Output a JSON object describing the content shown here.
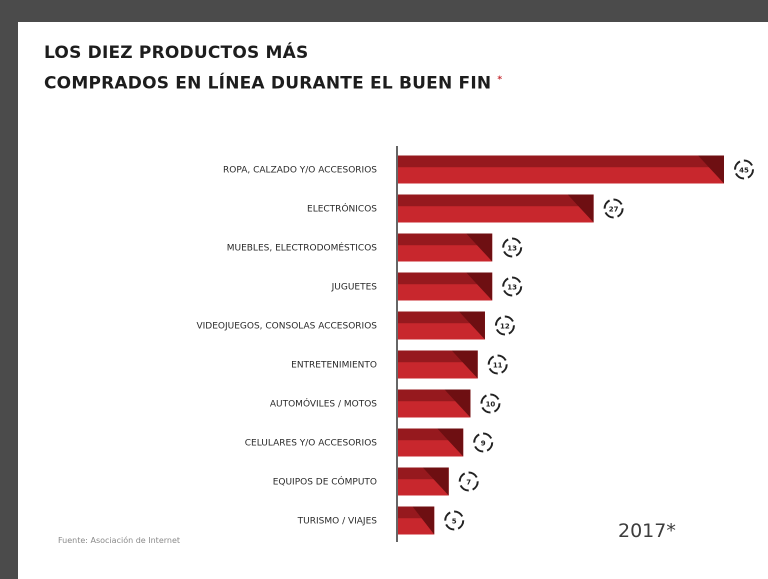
{
  "title_line1": "LOS DIEZ PRODUCTOS MÁS",
  "title_line2": "COMPRADOS EN LÍNEA DURANTE EL BUEN FIN",
  "title_mark": "*",
  "source": "Fuente: Asociación de Internet",
  "year": "2017*",
  "colors": {
    "bar": "#c8272d",
    "bar_dark": "#6e0f12",
    "axis": "#333333",
    "frame": "#4b4b4b"
  },
  "chart_data": {
    "type": "bar",
    "orientation": "horizontal",
    "title": "LOS DIEZ PRODUCTOS MÁS COMPRADOS EN LÍNEA DURANTE EL BUEN FIN*",
    "categories": [
      "ROPA, CALZADO Y/O ACCESORIOS",
      "ELECTRÓNICOS",
      "MUEBLES, ELECTRODOMÉSTICOS",
      "JUGUETES",
      "VIDEOJUEGOS, CONSOLAS ACCESORIOS",
      "ENTRETENIMIENTO",
      "AUTOMÓVILES / MOTOS",
      "CELULARES Y/O ACCESORIOS",
      "EQUIPOS DE CÓMPUTO",
      "TURISMO / VIAJES"
    ],
    "values": [
      45,
      27,
      13,
      13,
      12,
      11,
      10,
      9,
      7,
      5
    ],
    "value_labels": [
      "45",
      "27",
      "13",
      "13",
      "12",
      "11",
      "10",
      "9",
      "7",
      "5"
    ],
    "xlim": [
      0,
      45
    ],
    "grid": false,
    "legend": "none"
  }
}
